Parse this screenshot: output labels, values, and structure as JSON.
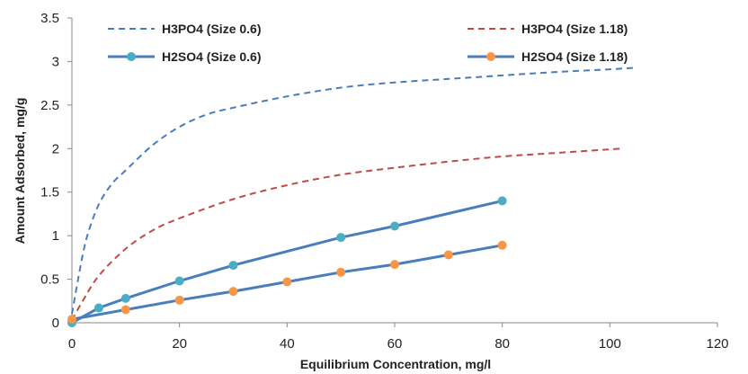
{
  "chart_data": {
    "type": "line",
    "xlabel": "Equilibrium Concentration, mg/l",
    "ylabel": "Amount Adsorbed, mg/g",
    "xlim": [
      0,
      120
    ],
    "ylim": [
      0,
      3.5
    ],
    "x_ticks": [
      "0",
      "20",
      "40",
      "60",
      "80",
      "100",
      "120"
    ],
    "y_ticks": [
      "0",
      "0.5",
      "1",
      "1.5",
      "2",
      "2.5",
      "3",
      "3.5"
    ],
    "grid": false,
    "legend_position": "top",
    "series": [
      {
        "name": "H3PO4 (Size 0.6)",
        "style": "dashed",
        "color": "#4a7ebb",
        "x": [
          0,
          1,
          2,
          3,
          5,
          7.5,
          10,
          15,
          20,
          25,
          30,
          40,
          50,
          60,
          70,
          80,
          90,
          100,
          105
        ],
        "y": [
          0.1,
          0.45,
          0.78,
          1.03,
          1.36,
          1.6,
          1.75,
          2.04,
          2.25,
          2.39,
          2.47,
          2.6,
          2.7,
          2.76,
          2.8,
          2.84,
          2.88,
          2.91,
          2.93
        ]
      },
      {
        "name": "H3PO4 (Size 1.18)",
        "style": "dashed",
        "color": "#be4b48",
        "x": [
          0,
          2,
          5,
          10,
          15,
          20,
          30,
          40,
          50,
          60,
          70,
          80,
          90,
          102
        ],
        "y": [
          0.03,
          0.25,
          0.54,
          0.85,
          1.06,
          1.2,
          1.42,
          1.58,
          1.7,
          1.78,
          1.85,
          1.91,
          1.95,
          2.0
        ]
      },
      {
        "name": "H2SO4 (Size 0.6)",
        "style": "solid-markers",
        "color": "#4a7ebb",
        "marker_color": "#4bacc6",
        "x": [
          0,
          5,
          10,
          20,
          30,
          50,
          60,
          80
        ],
        "y": [
          0.0,
          0.17,
          0.28,
          0.48,
          0.66,
          0.98,
          1.11,
          1.4
        ]
      },
      {
        "name": "H2SO4 (Size 1.18)",
        "style": "solid-markers",
        "color": "#4a7ebb",
        "marker_color": "#f79646",
        "x": [
          0,
          10,
          20,
          30,
          40,
          50,
          60,
          70,
          80
        ],
        "y": [
          0.04,
          0.15,
          0.26,
          0.36,
          0.47,
          0.58,
          0.67,
          0.78,
          0.89
        ]
      }
    ]
  }
}
